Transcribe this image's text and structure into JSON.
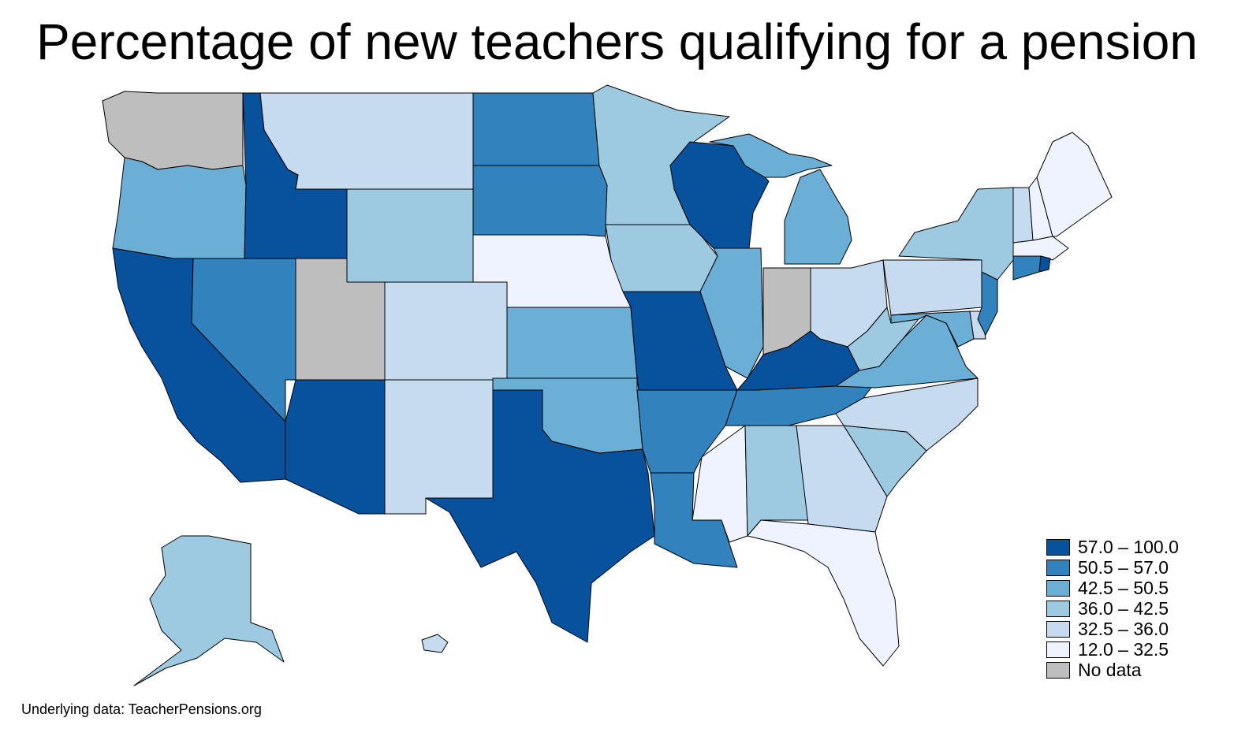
{
  "title": "Percentage of new teachers qualifying for a pension",
  "source": "Underlying data: TeacherPensions.org",
  "classes": [
    {
      "key": "c1",
      "label": "57.0 – 100.0",
      "color": "#08519c"
    },
    {
      "key": "c2",
      "label": "50.5 – 57.0",
      "color": "#3182bd"
    },
    {
      "key": "c3",
      "label": "42.5 – 50.5",
      "color": "#6baed6"
    },
    {
      "key": "c4",
      "label": "36.0 – 42.5",
      "color": "#9ecae1"
    },
    {
      "key": "c5",
      "label": "32.5 – 36.0",
      "color": "#c6dbef"
    },
    {
      "key": "c6",
      "label": "12.0 – 32.5",
      "color": "#eff3ff"
    },
    {
      "key": "nodata",
      "label": "No data",
      "color": "#bebebe"
    }
  ],
  "states": {
    "WA": "nodata",
    "OR": "c3",
    "CA": "c1",
    "ID": "c1",
    "NV": "c2",
    "MT": "c5",
    "WY": "c4",
    "UT": "nodata",
    "AZ": "c1",
    "CO": "c5",
    "NM": "c5",
    "ND": "c2",
    "SD": "c2",
    "NE": "c6",
    "KS": "c3",
    "OK": "c3",
    "TX": "c1",
    "MN": "c4",
    "IA": "c4",
    "MO": "c1",
    "AR": "c2",
    "LA": "c2",
    "WI": "c1",
    "IL": "c3",
    "MI": "c3",
    "IN": "nodata",
    "OH": "c5",
    "KY": "c1",
    "TN": "c2",
    "MS": "c6",
    "AL": "c4",
    "GA": "c5",
    "FL": "c6",
    "SC": "c4",
    "NC": "c5",
    "VA": "c3",
    "WV": "c4",
    "MD": "c3",
    "DE": "c5",
    "PA": "c5",
    "NJ": "c2",
    "NY": "c4",
    "CT": "c2",
    "RI": "c1",
    "MA": "c6",
    "VT": "c5",
    "NH": "c6",
    "ME": "c6",
    "AK": "c4",
    "HI": "c5"
  }
}
